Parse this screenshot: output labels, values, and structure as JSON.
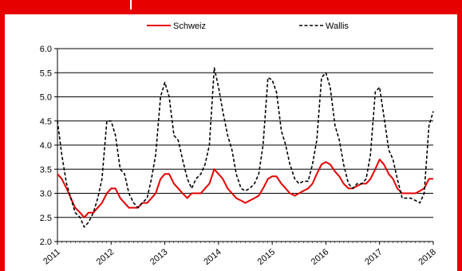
{
  "chart_data": {
    "type": "line",
    "title": "",
    "xlabel": "",
    "ylabel": "",
    "xlim": [
      2011.0,
      2018.0
    ],
    "ylim": [
      2.0,
      6.0
    ],
    "yticks": [
      "2.0",
      "2.5",
      "3.0",
      "3.5",
      "4.0",
      "4.5",
      "5.0",
      "5.5",
      "6.0"
    ],
    "xticks": [
      "2011",
      "2012",
      "2013",
      "2014",
      "2015",
      "2016",
      "2017",
      "2018"
    ],
    "grid": "horizontal",
    "legend_position": "top",
    "series": [
      {
        "name": "Schweiz",
        "color": "#e60000",
        "style": "solid",
        "points": [
          [
            2011.0,
            3.4
          ],
          [
            2011.08,
            3.3
          ],
          [
            2011.17,
            3.1
          ],
          [
            2011.25,
            2.9
          ],
          [
            2011.33,
            2.7
          ],
          [
            2011.42,
            2.6
          ],
          [
            2011.5,
            2.5
          ],
          [
            2011.58,
            2.6
          ],
          [
            2011.67,
            2.6
          ],
          [
            2011.75,
            2.7
          ],
          [
            2011.83,
            2.8
          ],
          [
            2011.92,
            3.0
          ],
          [
            2012.0,
            3.1
          ],
          [
            2012.08,
            3.1
          ],
          [
            2012.17,
            2.9
          ],
          [
            2012.25,
            2.8
          ],
          [
            2012.33,
            2.7
          ],
          [
            2012.42,
            2.7
          ],
          [
            2012.5,
            2.7
          ],
          [
            2012.58,
            2.8
          ],
          [
            2012.67,
            2.8
          ],
          [
            2012.75,
            2.9
          ],
          [
            2012.83,
            3.0
          ],
          [
            2012.92,
            3.3
          ],
          [
            2013.0,
            3.4
          ],
          [
            2013.08,
            3.4
          ],
          [
            2013.17,
            3.2
          ],
          [
            2013.25,
            3.1
          ],
          [
            2013.33,
            3.0
          ],
          [
            2013.42,
            2.9
          ],
          [
            2013.5,
            3.0
          ],
          [
            2013.58,
            3.0
          ],
          [
            2013.67,
            3.0
          ],
          [
            2013.75,
            3.1
          ],
          [
            2013.83,
            3.2
          ],
          [
            2013.92,
            3.5
          ],
          [
            2014.0,
            3.4
          ],
          [
            2014.08,
            3.3
          ],
          [
            2014.17,
            3.1
          ],
          [
            2014.25,
            3.0
          ],
          [
            2014.33,
            2.9
          ],
          [
            2014.42,
            2.85
          ],
          [
            2014.5,
            2.8
          ],
          [
            2014.58,
            2.85
          ],
          [
            2014.67,
            2.9
          ],
          [
            2014.75,
            2.95
          ],
          [
            2014.83,
            3.1
          ],
          [
            2014.92,
            3.3
          ],
          [
            2015.0,
            3.35
          ],
          [
            2015.08,
            3.35
          ],
          [
            2015.17,
            3.2
          ],
          [
            2015.25,
            3.1
          ],
          [
            2015.33,
            3.0
          ],
          [
            2015.42,
            2.95
          ],
          [
            2015.5,
            3.0
          ],
          [
            2015.58,
            3.05
          ],
          [
            2015.67,
            3.1
          ],
          [
            2015.75,
            3.2
          ],
          [
            2015.83,
            3.4
          ],
          [
            2015.92,
            3.6
          ],
          [
            2016.0,
            3.65
          ],
          [
            2016.08,
            3.6
          ],
          [
            2016.17,
            3.45
          ],
          [
            2016.25,
            3.35
          ],
          [
            2016.33,
            3.2
          ],
          [
            2016.42,
            3.1
          ],
          [
            2016.5,
            3.1
          ],
          [
            2016.58,
            3.15
          ],
          [
            2016.67,
            3.2
          ],
          [
            2016.75,
            3.2
          ],
          [
            2016.83,
            3.3
          ],
          [
            2016.92,
            3.5
          ],
          [
            2017.0,
            3.7
          ],
          [
            2017.08,
            3.6
          ],
          [
            2017.17,
            3.4
          ],
          [
            2017.25,
            3.3
          ],
          [
            2017.33,
            3.1
          ],
          [
            2017.42,
            3.0
          ],
          [
            2017.5,
            3.0
          ],
          [
            2017.58,
            3.0
          ],
          [
            2017.67,
            3.0
          ],
          [
            2017.75,
            3.05
          ],
          [
            2017.83,
            3.1
          ],
          [
            2017.92,
            3.3
          ],
          [
            2018.0,
            3.3
          ]
        ]
      },
      {
        "name": "Wallis",
        "color": "#000000",
        "style": "dashed",
        "points": [
          [
            2011.0,
            4.5
          ],
          [
            2011.08,
            3.8
          ],
          [
            2011.17,
            3.2
          ],
          [
            2011.25,
            2.9
          ],
          [
            2011.33,
            2.6
          ],
          [
            2011.42,
            2.5
          ],
          [
            2011.5,
            2.3
          ],
          [
            2011.58,
            2.4
          ],
          [
            2011.67,
            2.6
          ],
          [
            2011.75,
            2.9
          ],
          [
            2011.83,
            3.3
          ],
          [
            2011.92,
            4.5
          ],
          [
            2012.0,
            4.5
          ],
          [
            2012.08,
            4.2
          ],
          [
            2012.17,
            3.5
          ],
          [
            2012.25,
            3.4
          ],
          [
            2012.33,
            3.0
          ],
          [
            2012.42,
            2.8
          ],
          [
            2012.5,
            2.7
          ],
          [
            2012.58,
            2.8
          ],
          [
            2012.67,
            2.9
          ],
          [
            2012.75,
            3.3
          ],
          [
            2012.83,
            3.8
          ],
          [
            2012.92,
            5.0
          ],
          [
            2013.0,
            5.3
          ],
          [
            2013.08,
            5.0
          ],
          [
            2013.17,
            4.2
          ],
          [
            2013.25,
            4.1
          ],
          [
            2013.33,
            3.7
          ],
          [
            2013.42,
            3.3
          ],
          [
            2013.5,
            3.1
          ],
          [
            2013.58,
            3.3
          ],
          [
            2013.67,
            3.4
          ],
          [
            2013.75,
            3.6
          ],
          [
            2013.83,
            4.0
          ],
          [
            2013.92,
            5.6
          ],
          [
            2014.0,
            5.2
          ],
          [
            2014.08,
            4.7
          ],
          [
            2014.17,
            4.2
          ],
          [
            2014.25,
            3.9
          ],
          [
            2014.33,
            3.4
          ],
          [
            2014.42,
            3.1
          ],
          [
            2014.5,
            3.05
          ],
          [
            2014.58,
            3.1
          ],
          [
            2014.67,
            3.2
          ],
          [
            2014.75,
            3.4
          ],
          [
            2014.83,
            4.0
          ],
          [
            2014.92,
            5.4
          ],
          [
            2015.0,
            5.35
          ],
          [
            2015.08,
            5.1
          ],
          [
            2015.17,
            4.3
          ],
          [
            2015.25,
            4.0
          ],
          [
            2015.33,
            3.6
          ],
          [
            2015.42,
            3.3
          ],
          [
            2015.5,
            3.2
          ],
          [
            2015.58,
            3.25
          ],
          [
            2015.67,
            3.25
          ],
          [
            2015.75,
            3.6
          ],
          [
            2015.83,
            4.1
          ],
          [
            2015.92,
            5.4
          ],
          [
            2016.0,
            5.5
          ],
          [
            2016.08,
            5.2
          ],
          [
            2016.17,
            4.4
          ],
          [
            2016.25,
            4.1
          ],
          [
            2016.33,
            3.6
          ],
          [
            2016.42,
            3.2
          ],
          [
            2016.5,
            3.1
          ],
          [
            2016.58,
            3.2
          ],
          [
            2016.67,
            3.2
          ],
          [
            2016.75,
            3.3
          ],
          [
            2016.83,
            3.8
          ],
          [
            2016.92,
            5.1
          ],
          [
            2017.0,
            5.2
          ],
          [
            2017.08,
            4.6
          ],
          [
            2017.17,
            3.9
          ],
          [
            2017.25,
            3.7
          ],
          [
            2017.33,
            3.3
          ],
          [
            2017.42,
            2.9
          ],
          [
            2017.5,
            2.9
          ],
          [
            2017.58,
            2.9
          ],
          [
            2017.67,
            2.85
          ],
          [
            2017.75,
            2.8
          ],
          [
            2017.83,
            3.0
          ],
          [
            2017.92,
            4.4
          ],
          [
            2018.0,
            4.7
          ]
        ]
      }
    ]
  }
}
